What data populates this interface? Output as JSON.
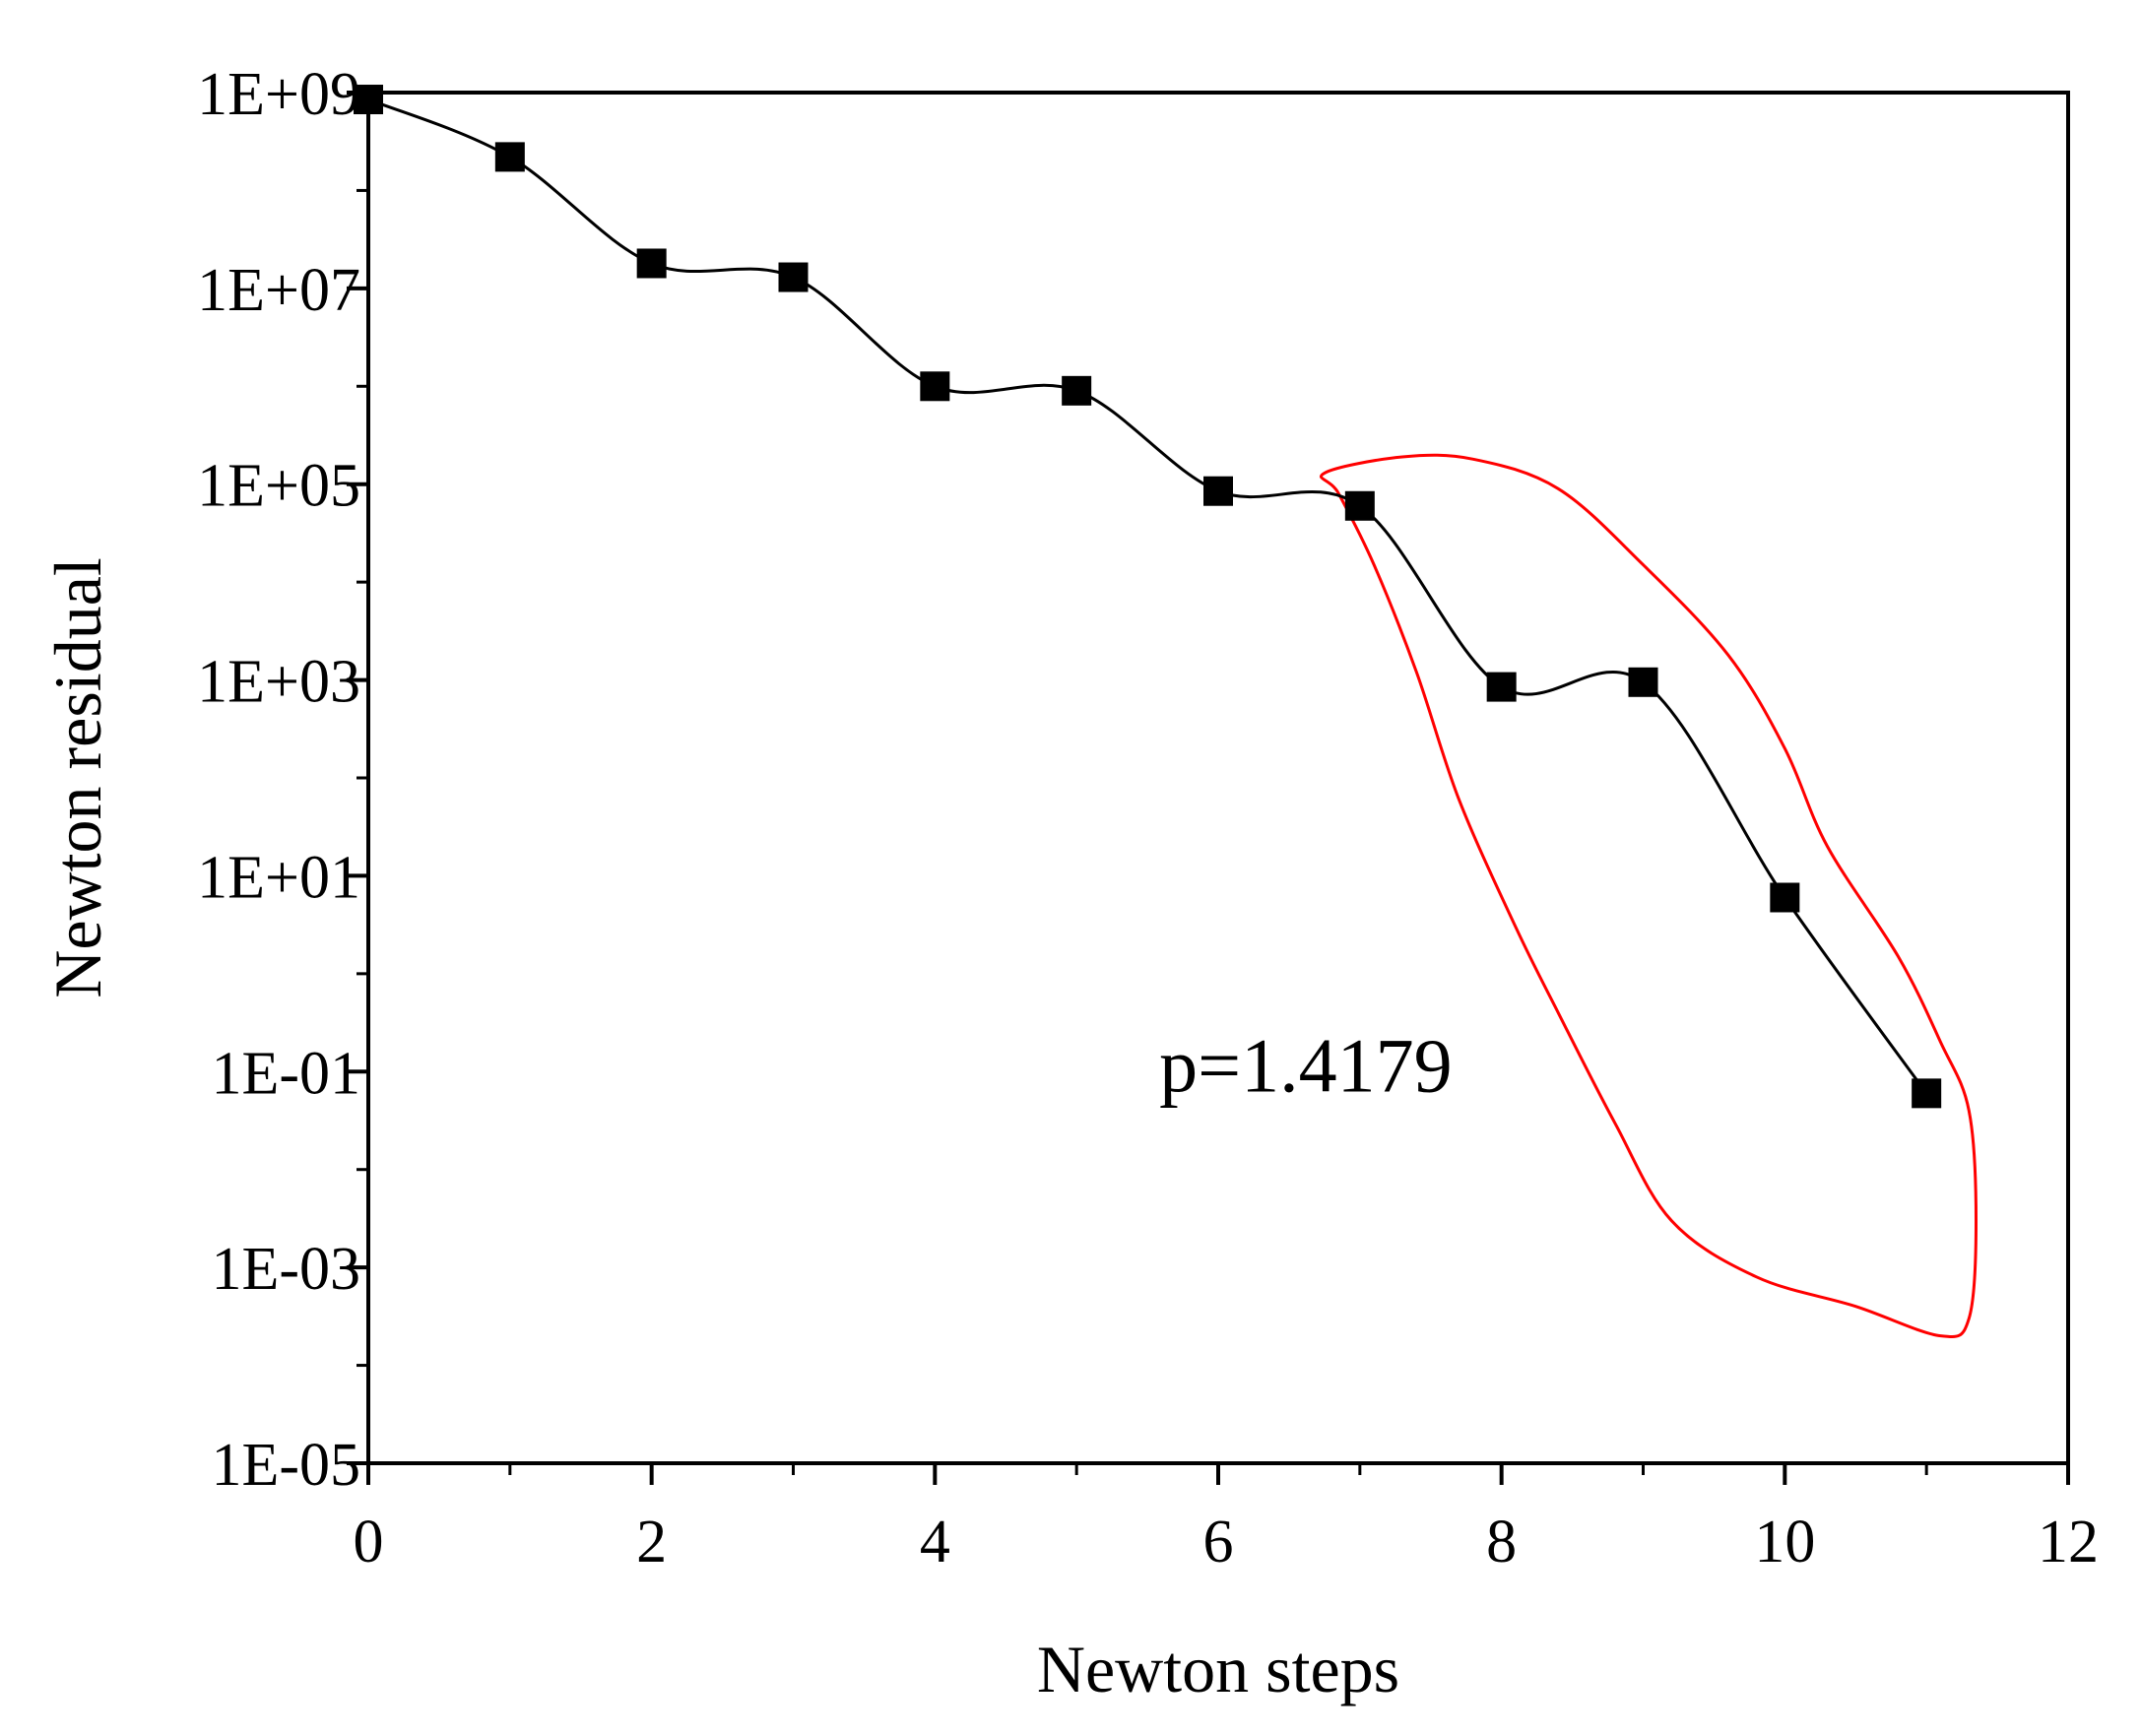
{
  "chart_data": {
    "type": "line",
    "title": "",
    "xlabel": "Newton steps",
    "ylabel": "Newton residual",
    "xlim": [
      0,
      12
    ],
    "ylim": [
      1e-05,
      1000000000.0
    ],
    "yscale": "log",
    "grid": false,
    "x_ticks": [
      0,
      2,
      4,
      6,
      8,
      10,
      12
    ],
    "x_tick_labels": [
      "0",
      "2",
      "4",
      "6",
      "8",
      "10",
      "12"
    ],
    "y_ticks": [
      1e-05,
      0.001,
      0.1,
      10,
      1000,
      100000,
      10000000,
      1000000000
    ],
    "y_tick_labels": [
      "1E-05",
      "1E-03",
      "1E-01",
      "1E+01",
      "1E+03",
      "1E+05",
      "1E+07",
      "1E+09"
    ],
    "series": [
      {
        "name": "Newton residual",
        "marker": "square",
        "color": "#000000",
        "x": [
          0,
          1,
          2,
          3,
          4,
          5,
          6,
          7,
          8,
          9,
          10,
          11
        ],
        "y": [
          850000000,
          220000000,
          18000000,
          13000000,
          1000000,
          900000,
          85000,
          60000,
          850,
          950,
          6,
          0.06
        ]
      }
    ],
    "annotation": {
      "text": "p=1.4179",
      "x": 7.8,
      "y": 0.12
    },
    "highlight": {
      "color": "#ff0000",
      "description_points": [
        [
          6.75,
          130000
        ],
        [
          7.3,
          190000
        ],
        [
          7.8,
          180000
        ],
        [
          8.4,
          90000
        ],
        [
          9.0,
          15000
        ],
        [
          9.6,
          1800
        ],
        [
          10.0,
          200
        ],
        [
          10.3,
          20
        ],
        [
          10.8,
          1.5
        ],
        [
          11.1,
          0.2
        ],
        [
          11.3,
          0.04
        ],
        [
          11.35,
          0.003
        ],
        [
          11.3,
          0.0003
        ],
        [
          11.1,
          0.0002
        ],
        [
          10.5,
          0.0004
        ],
        [
          9.8,
          0.0008
        ],
        [
          9.2,
          0.003
        ],
        [
          8.8,
          0.03
        ],
        [
          8.4,
          0.4
        ],
        [
          8.1,
          3
        ],
        [
          7.7,
          60
        ],
        [
          7.4,
          1200
        ],
        [
          7.1,
          15000
        ],
        [
          6.85,
          80000
        ]
      ]
    }
  }
}
